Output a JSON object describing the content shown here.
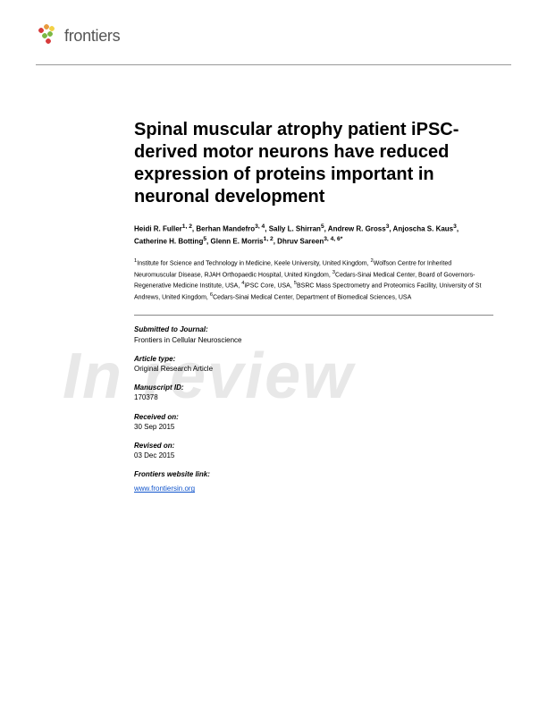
{
  "brand": {
    "name": "frontiers"
  },
  "watermark": "In review",
  "title": "Spinal muscular atrophy patient iPSC-derived motor neurons have reduced expression of proteins important in neuronal development",
  "authors_html": "Heidi R. Fuller<sup>1, 2</sup>, Berhan Mandefro<sup>3, 4</sup>, Sally L. Shirran<sup>5</sup>, Andrew R. Gross<sup>3</sup>, Anjoscha S. Kaus<sup>3</sup>, Catherine H. Botting<sup>5</sup>, Glenn E. Morris<sup>1, 2</sup>, Dhruv Sareen<sup>3, 4, 6*</sup>",
  "affiliations_html": "<sup>1</sup>Institute for Science and Technology in Medicine, Keele University, United Kingdom, <sup>2</sup>Wolfson Centre for Inherited Neuromuscular Disease, RJAH Orthopaedic Hospital, United Kingdom, <sup>3</sup>Cedars-Sinai Medical Center, Board of Governors-Regenerative Medicine Institute, USA, <sup>4</sup>iPSC Core, USA, <sup>5</sup>BSRC Mass Spectrometry and Proteomics Facility, University of St Andrews, United Kingdom, <sup>6</sup>Cedars-Sinai Medical Center, Department of Biomedical Sciences, USA",
  "meta": {
    "submitted_label": "Submitted to Journal:",
    "submitted_value": "Frontiers in Cellular Neuroscience",
    "article_type_label": "Article type:",
    "article_type_value": "Original Research Article",
    "manuscript_id_label": "Manuscript ID:",
    "manuscript_id_value": "170378",
    "received_label": "Received on:",
    "received_value": "30 Sep 2015",
    "revised_label": "Revised on:",
    "revised_value": "03 Dec 2015",
    "website_label": "Frontiers website link:",
    "website_url": "www.frontiersin.org"
  },
  "colors": {
    "logo_red": "#d73b3b",
    "logo_orange": "#e89b3e",
    "logo_yellow": "#f3d145",
    "logo_green": "#7cb843",
    "logo_text": "#555555",
    "divider": "#999999",
    "link": "#1155cc",
    "watermark": "#e8e8e8"
  }
}
